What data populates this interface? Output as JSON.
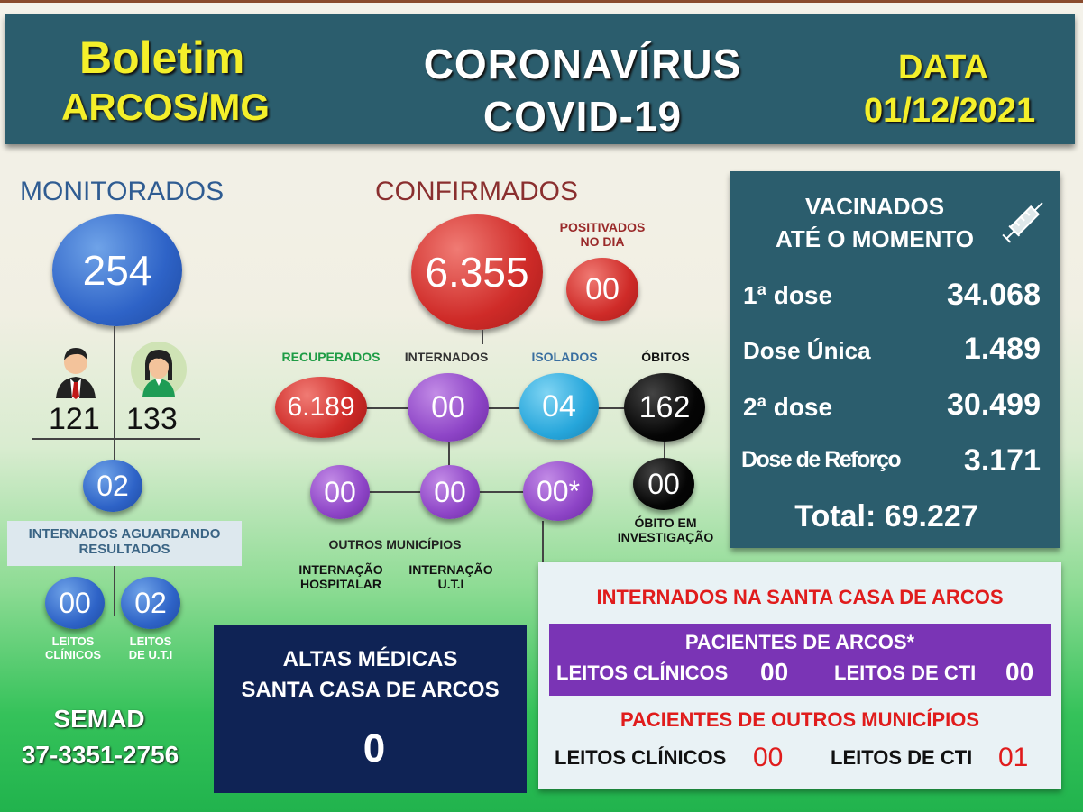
{
  "header": {
    "boletim": "Boletim",
    "arcos": "ARCOS/MG",
    "corona": "CORONAVÍRUS",
    "covid": "COVID-19",
    "data_label": "DATA",
    "date": "01/12/2021"
  },
  "monitorados": {
    "title": "MONITORADOS",
    "total": "254",
    "men": "121",
    "women": "133",
    "aguardando": "02",
    "aguardando_label_1": "INTERNADOS AGUARDANDO",
    "aguardando_label_2": "RESULTADOS",
    "leitos_clinicos": "00",
    "leitos_uti": "02",
    "leitos_clinicos_label_1": "LEITOS",
    "leitos_clinicos_label_2": "CLÍNICOS",
    "leitos_uti_label_1": "LEITOS",
    "leitos_uti_label_2": "DE U.T.I"
  },
  "confirmados": {
    "title": "CONFIRMADOS",
    "total": "6.355",
    "positivados_label_1": "POSITIVADOS",
    "positivados_label_2": "NO DIA",
    "positivados": "00",
    "recuperados_label": "RECUPERADOS",
    "recuperados": "6.189",
    "internados_label": "INTERNADOS",
    "internados": "00",
    "isolados_label": "ISOLADOS",
    "isolados": "04",
    "obitos_label": "ÓBITOS",
    "obitos": "162",
    "int_hospitalar": "00",
    "int_uti": "00",
    "outros": "00*",
    "obito_inv": "00",
    "obito_inv_label_1": "ÓBITO EM",
    "obito_inv_label_2": "INVESTIGAÇÃO",
    "outros_municipios": "OUTROS MUNICÍPIOS",
    "int_hosp_label_1": "INTERNAÇÃO",
    "int_hosp_label_2": "HOSPITALAR",
    "int_uti_label_1": "INTERNAÇÃO",
    "int_uti_label_2": "U.T.I"
  },
  "vacinados": {
    "title_1": "VACINADOS",
    "title_2": "ATÉ O MOMENTO",
    "dose1_label": "1ª dose",
    "dose1": "34.068",
    "unica_label": "Dose Única",
    "unica": "1.489",
    "dose2_label": "2ª dose",
    "dose2": "30.499",
    "reforco_label": "Dose de Reforço",
    "reforco": "3.171",
    "total": "Total: 69.227",
    "icon": "syringe-icon"
  },
  "semad": {
    "name": "SEMAD",
    "phone": "37-3351-2756"
  },
  "altas": {
    "line1": "ALTAS MÉDICAS",
    "line2": "SANTA CASA DE ARCOS",
    "value": "0"
  },
  "santa_casa": {
    "title": "INTERNADOS NA SANTA CASA DE ARCOS",
    "arcos_title": "PACIENTES DE ARCOS*",
    "leitos_clinicos_label": "LEITOS CLÍNICOS",
    "arcos_clinicos": "00",
    "leitos_cti_label": "LEITOS DE CTI",
    "arcos_cti": "00",
    "outros_title": "PACIENTES DE OUTROS MUNICÍPIOS",
    "outros_clinicos": "00",
    "outros_cti": "01"
  },
  "colors": {
    "teal": "#2b5d6d",
    "yellow": "#f4ef2a",
    "red": "#cf2b28",
    "purple": "#8e45c7",
    "green": "#21b34d"
  }
}
